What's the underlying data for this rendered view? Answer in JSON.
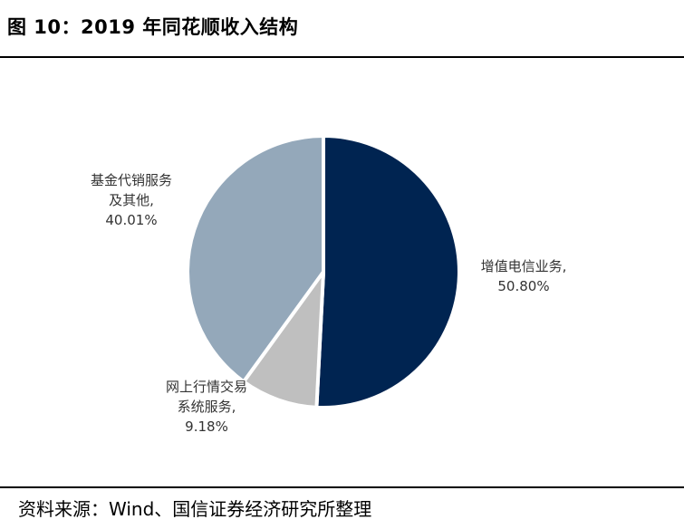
{
  "header": {
    "title": "图 10：2019 年同花顺收入结构"
  },
  "footer": {
    "source": "资料来源：Wind、国信证券经济研究所整理"
  },
  "chart_data": {
    "type": "pie",
    "title": "2019 年同花顺收入结构",
    "series": [
      {
        "name_lines": [
          "增值电信业务,"
        ],
        "value": 50.8,
        "label": "50.80%",
        "color": "#002451"
      },
      {
        "name_lines": [
          "网上行情交易",
          "系统服务,"
        ],
        "value": 9.18,
        "label": "9.18%",
        "color": "#bfbfbf"
      },
      {
        "name_lines": [
          "基金代销服务",
          "及其他,"
        ],
        "value": 40.01,
        "label": "40.01%",
        "color": "#94a8ba"
      }
    ]
  }
}
